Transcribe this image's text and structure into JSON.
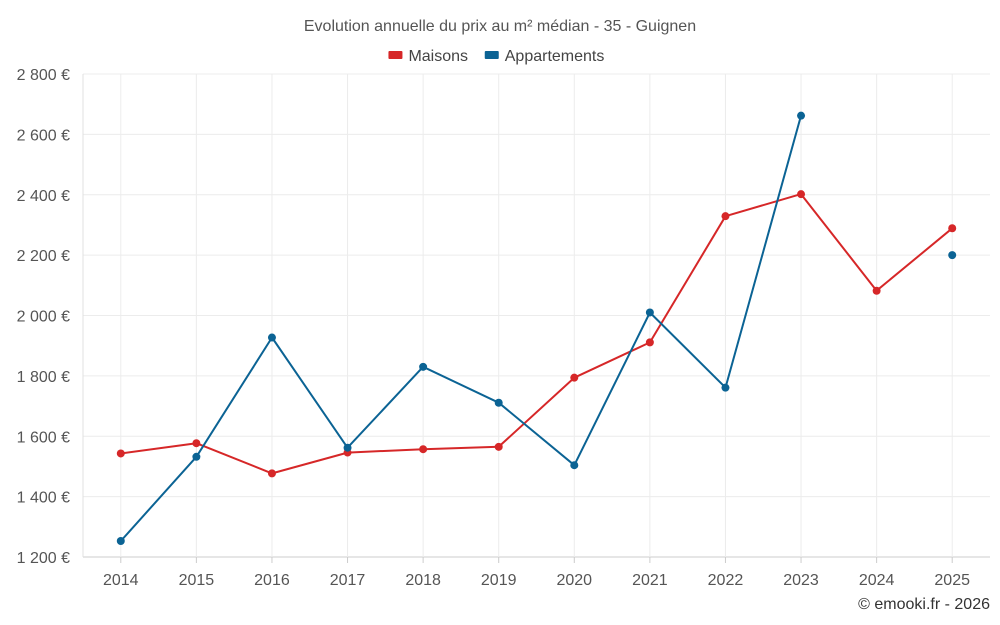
{
  "chart_data": {
    "type": "line",
    "title": "Evolution annuelle du prix au m² médian - 35 - Guignen",
    "categories": [
      "2014",
      "2015",
      "2016",
      "2017",
      "2018",
      "2019",
      "2020",
      "2021",
      "2022",
      "2023",
      "2024",
      "2025"
    ],
    "y_tick_labels": [
      "1 200 €",
      "1 400 €",
      "1 600 €",
      "1 800 €",
      "2 000 €",
      "2 200 €",
      "2 400 €",
      "2 600 €",
      "2 800 €"
    ],
    "y_ticks": [
      1200,
      1400,
      1600,
      1800,
      2000,
      2200,
      2400,
      2600,
      2800
    ],
    "ylim": [
      1200,
      2800
    ],
    "grid": true,
    "legend_position": "top-center",
    "series": [
      {
        "name": "Maisons",
        "color": "#d62728",
        "values": [
          1543,
          1577,
          1477,
          1546,
          1557,
          1565,
          1794,
          1911,
          2329,
          2402,
          2082,
          2289
        ]
      },
      {
        "name": "Appartements",
        "color": "#0b6394",
        "values": [
          1253,
          1532,
          1927,
          1562,
          1830,
          1711,
          1504,
          2010,
          1761,
          2662,
          null,
          2200
        ]
      }
    ],
    "credit": "© emooki.fr - 2026"
  }
}
